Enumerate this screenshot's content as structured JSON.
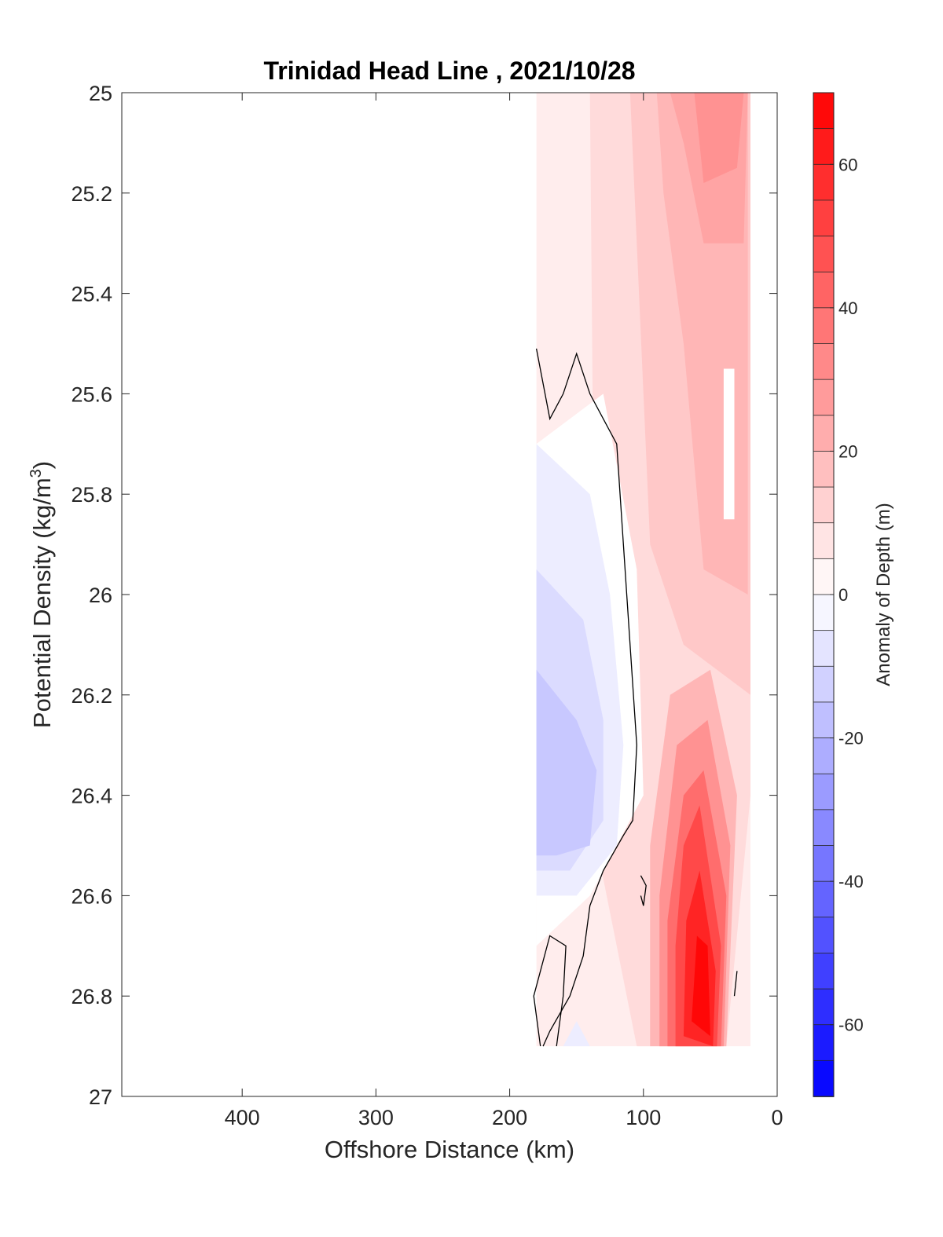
{
  "chart_data": {
    "type": "contour",
    "title": "Trinidad Head Line , 2021/10/28",
    "xlabel": "Offshore Distance (km)",
    "ylabel": "Potential Density (kg/m3)",
    "ylabel_main": "Potential Density (kg/m",
    "ylabel_sup": "3",
    "ylabel_close": ")",
    "xlim": [
      490,
      0
    ],
    "ylim": [
      25,
      27
    ],
    "x_reversed": true,
    "y_reversed": true,
    "x_ticks": [
      400,
      300,
      200,
      100,
      0
    ],
    "x_tick_labels": [
      "400",
      "300",
      "200",
      "100",
      "0"
    ],
    "y_ticks": [
      25,
      25.2,
      25.4,
      25.6,
      25.8,
      26,
      26.2,
      26.4,
      26.6,
      26.8,
      27
    ],
    "y_tick_labels": [
      "25",
      "25.2",
      "25.4",
      "25.6",
      "25.8",
      "26",
      "26.2",
      "26.4",
      "26.6",
      "26.8",
      "27"
    ],
    "colorbar": {
      "label": "Anomaly of Depth (m)",
      "range": [
        -70,
        70
      ],
      "step": 5,
      "ticks": [
        60,
        40,
        20,
        0,
        -20,
        -40,
        -60
      ],
      "tick_labels": [
        "60",
        "40",
        "20",
        "0",
        "-20",
        "-40",
        "-60"
      ],
      "colormap": "blue-white-red"
    },
    "data_extent": {
      "x": [
        180,
        20
      ],
      "y": [
        25,
        26.9
      ]
    },
    "contour_fields": [
      {
        "kind": "positive",
        "regions": [
          {
            "level": 5,
            "points": [
              [
                180,
                25.0
              ],
              [
                20,
                25.0
              ],
              [
                20,
                26.9
              ],
              [
                180,
                26.9
              ]
            ]
          },
          {
            "level": 10,
            "points": [
              [
                140,
                25.0
              ],
              [
                20,
                25.0
              ],
              [
                20,
                26.4
              ],
              [
                38,
                26.9
              ],
              [
                105,
                26.9
              ],
              [
                135,
                26.5
              ]
            ]
          },
          {
            "level": 15,
            "points": [
              [
                110,
                25.0
              ],
              [
                20,
                25.0
              ],
              [
                20,
                26.2
              ],
              [
                70,
                26.1
              ],
              [
                95,
                25.9
              ],
              [
                105,
                25.3
              ]
            ]
          },
          {
            "level": 20,
            "points": [
              [
                90,
                25.0
              ],
              [
                22,
                25.0
              ],
              [
                22,
                26.0
              ],
              [
                55,
                25.95
              ],
              [
                70,
                25.5
              ],
              [
                85,
                25.2
              ]
            ]
          },
          {
            "level": 25,
            "points": [
              [
                80,
                25.0
              ],
              [
                22,
                25.0
              ],
              [
                25,
                25.3
              ],
              [
                55,
                25.3
              ],
              [
                70,
                25.1
              ]
            ]
          },
          {
            "level": 30,
            "points": [
              [
                62,
                25.0
              ],
              [
                25,
                25.0
              ],
              [
                30,
                25.15
              ],
              [
                55,
                25.18
              ]
            ]
          },
          {
            "level": 20,
            "points": [
              [
                95,
                26.9
              ],
              [
                38,
                26.9
              ],
              [
                30,
                26.4
              ],
              [
                50,
                26.15
              ],
              [
                80,
                26.2
              ],
              [
                95,
                26.5
              ]
            ]
          },
          {
            "level": 30,
            "points": [
              [
                88,
                26.9
              ],
              [
                40,
                26.9
              ],
              [
                35,
                26.5
              ],
              [
                52,
                26.25
              ],
              [
                75,
                26.3
              ],
              [
                88,
                26.6
              ]
            ]
          },
          {
            "level": 40,
            "points": [
              [
                82,
                26.9
              ],
              [
                42,
                26.9
              ],
              [
                38,
                26.6
              ],
              [
                55,
                26.35
              ],
              [
                70,
                26.4
              ],
              [
                82,
                26.65
              ]
            ]
          },
          {
            "level": 50,
            "points": [
              [
                76,
                26.9
              ],
              [
                45,
                26.9
              ],
              [
                42,
                26.7
              ],
              [
                58,
                26.42
              ],
              [
                70,
                26.5
              ],
              [
                76,
                26.7
              ]
            ]
          },
          {
            "level": 60,
            "points": [
              [
                70,
                26.88
              ],
              [
                48,
                26.9
              ],
              [
                46,
                26.75
              ],
              [
                58,
                26.55
              ],
              [
                68,
                26.65
              ]
            ]
          },
          {
            "level": 68,
            "points": [
              [
                64,
                26.85
              ],
              [
                50,
                26.88
              ],
              [
                52,
                26.7
              ],
              [
                60,
                26.68
              ]
            ]
          }
        ]
      },
      {
        "kind": "near-zero",
        "regions": [
          {
            "level": 0,
            "points": [
              [
                180,
                25.7
              ],
              [
                130,
                25.6
              ],
              [
                105,
                25.95
              ],
              [
                100,
                26.4
              ],
              [
                140,
                26.6
              ],
              [
                180,
                26.7
              ]
            ]
          },
          {
            "level": 0,
            "points": [
              [
                40,
                25.55
              ],
              [
                32,
                25.55
              ],
              [
                32,
                25.85
              ],
              [
                40,
                25.85
              ]
            ]
          }
        ]
      },
      {
        "kind": "negative",
        "regions": [
          {
            "level": -5,
            "points": [
              [
                180,
                25.7
              ],
              [
                140,
                25.8
              ],
              [
                125,
                26.0
              ],
              [
                115,
                26.3
              ],
              [
                120,
                26.5
              ],
              [
                150,
                26.6
              ],
              [
                180,
                26.6
              ]
            ]
          },
          {
            "level": -10,
            "points": [
              [
                180,
                25.95
              ],
              [
                145,
                26.05
              ],
              [
                130,
                26.25
              ],
              [
                130,
                26.45
              ],
              [
                155,
                26.55
              ],
              [
                180,
                26.55
              ]
            ]
          },
          {
            "level": -15,
            "points": [
              [
                180,
                26.15
              ],
              [
                150,
                26.25
              ],
              [
                135,
                26.35
              ],
              [
                140,
                26.5
              ],
              [
                165,
                26.52
              ],
              [
                180,
                26.52
              ]
            ]
          },
          {
            "level": -5,
            "points": [
              [
                160,
                26.9
              ],
              [
                140,
                26.9
              ],
              [
                150,
                26.85
              ]
            ]
          }
        ]
      }
    ],
    "contour_lines": [
      {
        "level": 0,
        "points": [
          [
            180,
            25.51
          ],
          [
            170,
            25.65
          ],
          [
            160,
            25.6
          ],
          [
            150,
            25.52
          ],
          [
            140,
            25.6
          ],
          [
            120,
            25.7
          ],
          [
            115,
            25.9
          ],
          [
            110,
            26.1
          ],
          [
            105,
            26.3
          ],
          [
            108,
            26.45
          ],
          [
            115,
            26.48
          ],
          [
            130,
            26.55
          ],
          [
            140,
            26.62
          ],
          [
            145,
            26.72
          ],
          [
            155,
            26.8
          ],
          [
            170,
            26.87
          ],
          [
            175,
            26.9
          ]
        ]
      },
      {
        "level": 0,
        "points": [
          [
            165,
            26.9
          ],
          [
            160,
            26.8
          ],
          [
            158,
            26.7
          ],
          [
            170,
            26.68
          ],
          [
            182,
            26.8
          ],
          [
            177,
            26.9
          ]
        ]
      },
      {
        "level": 0,
        "points": [
          [
            102,
            26.56
          ],
          [
            98,
            26.58
          ],
          [
            100,
            26.62
          ],
          [
            102,
            26.6
          ]
        ]
      },
      {
        "level": 0,
        "points": [
          [
            30,
            26.75
          ],
          [
            32,
            26.8
          ]
        ]
      }
    ]
  }
}
